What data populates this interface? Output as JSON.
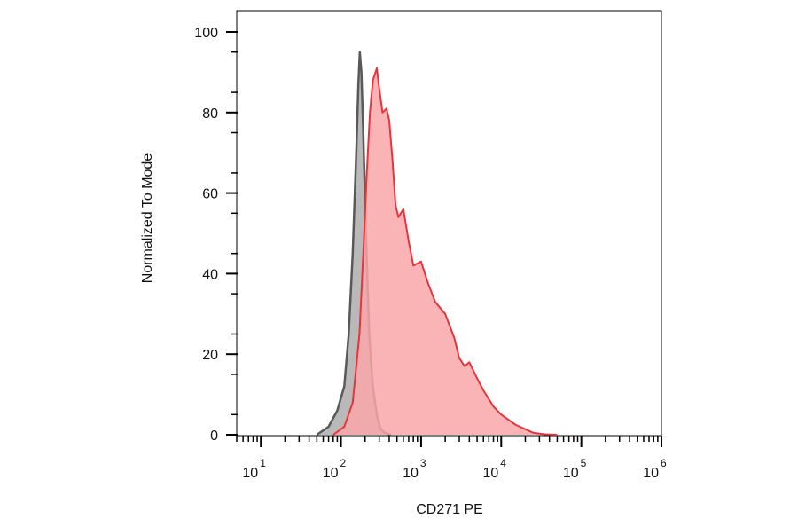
{
  "chart_data": {
    "type": "area",
    "xlabel": "CD271 PE",
    "ylabel": "Normalized To Mode",
    "x_scale": "log",
    "xlim": [
      5,
      1000000
    ],
    "ylim": [
      0,
      100
    ],
    "y_ticks": [
      "0",
      "20",
      "40",
      "60",
      "80",
      "100"
    ],
    "x_ticks": [
      {
        "base": "10",
        "exp": "1"
      },
      {
        "base": "10",
        "exp": "2"
      },
      {
        "base": "10",
        "exp": "3"
      },
      {
        "base": "10",
        "exp": "4"
      },
      {
        "base": "10",
        "exp": "5"
      },
      {
        "base": "10",
        "exp": "6"
      }
    ],
    "grid": false,
    "series": [
      {
        "color": "#595959",
        "fill": "#b9b9b9",
        "x": [
          50,
          70,
          90,
          110,
          125,
          140,
          155,
          165,
          172,
          180,
          190,
          205,
          225,
          250,
          280,
          310,
          350,
          420
        ],
        "y": [
          0,
          2,
          6,
          12,
          25,
          45,
          70,
          87,
          95,
          90,
          75,
          50,
          25,
          12,
          5,
          1.5,
          0.5,
          0
        ]
      },
      {
        "color": "#e8343a",
        "fill": "#f9a7a9",
        "x": [
          80,
          110,
          140,
          170,
          190,
          210,
          230,
          250,
          280,
          300,
          330,
          370,
          400,
          440,
          480,
          520,
          600,
          700,
          800,
          1000,
          1200,
          1500,
          2000,
          2600,
          3000,
          3500,
          4000,
          5000,
          6000,
          8000,
          10000,
          15000,
          25000,
          35000,
          50000
        ],
        "y": [
          0,
          2,
          8,
          25,
          45,
          65,
          80,
          88,
          91,
          86,
          80,
          81,
          78,
          68,
          57,
          54,
          56,
          48,
          42,
          43,
          38,
          33,
          30,
          24,
          19,
          17,
          18,
          14,
          11,
          7,
          5,
          2.5,
          0.5,
          0.1,
          0
        ]
      }
    ]
  }
}
